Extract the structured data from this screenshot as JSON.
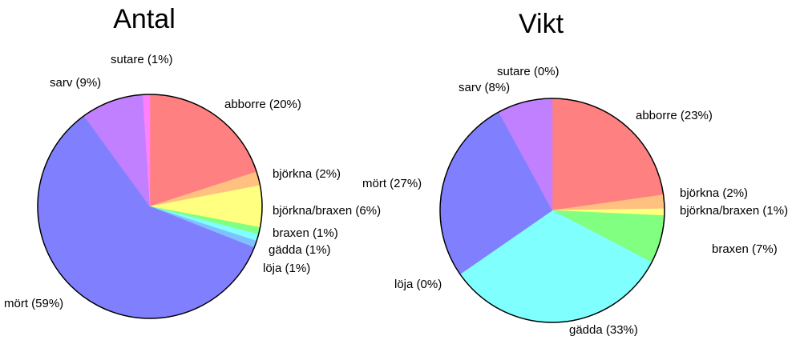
{
  "chart_data": [
    {
      "type": "pie",
      "title": "Antal",
      "categories": [
        "abborre (20%)",
        "björkna (2%)",
        "björkna/braxen (6%)",
        "braxen (1%)",
        "gädda (1%)",
        "löja (1%)",
        "mört (59%)",
        "sarv (9%)",
        "sutare (1%)"
      ],
      "values": [
        20,
        2,
        6,
        1,
        1,
        1,
        59,
        9,
        1
      ],
      "colors": [
        "#ff8080",
        "#ffc080",
        "#ffff80",
        "#80ff80",
        "#80ffff",
        "#80c0ff",
        "#8080ff",
        "#c080ff",
        "#ff80ff"
      ]
    },
    {
      "type": "pie",
      "title": "Vikt",
      "categories": [
        "abborre (23%)",
        "björkna (2%)",
        "björkna/braxen (1%)",
        "braxen (7%)",
        "gädda (33%)",
        "löja (0%)",
        "mört (27%)",
        "sarv (8%)",
        "sutare (0%)"
      ],
      "values": [
        23,
        2,
        1,
        7,
        33,
        0,
        27,
        8,
        0
      ],
      "colors": [
        "#ff8080",
        "#ffc080",
        "#ffff80",
        "#80ff80",
        "#80ffff",
        "#80c0ff",
        "#8080ff",
        "#c080ff",
        "#ff80ff"
      ]
    }
  ]
}
